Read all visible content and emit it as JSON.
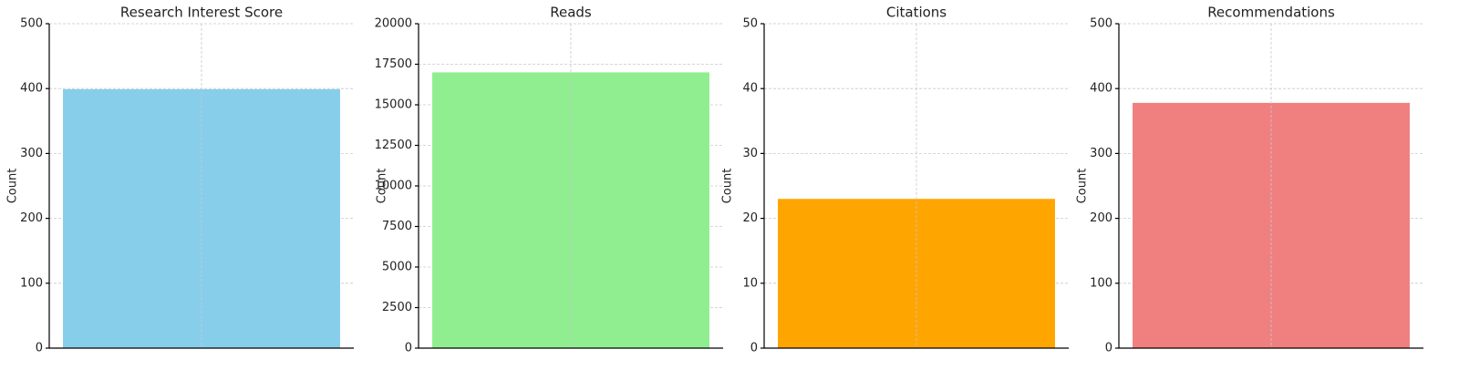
{
  "chart_data": [
    {
      "type": "bar",
      "title": "Research Interest Score",
      "y_label": "Count",
      "categories": [
        null
      ],
      "values": [
        399
      ],
      "color": "#87ceeb",
      "ylim": [
        0,
        500
      ],
      "yticks": [
        0,
        100,
        200,
        300,
        400,
        500
      ],
      "grid": true
    },
    {
      "type": "bar",
      "title": "Reads",
      "y_label": "Count",
      "categories": [
        null
      ],
      "values": [
        17000
      ],
      "color": "#90ee90",
      "ylim": [
        0,
        20000
      ],
      "yticks": [
        0,
        2500,
        5000,
        7500,
        10000,
        12500,
        15000,
        17500,
        20000
      ],
      "grid": true
    },
    {
      "type": "bar",
      "title": "Citations",
      "y_label": "Count",
      "categories": [
        null
      ],
      "values": [
        23
      ],
      "color": "#ffa500",
      "ylim": [
        0,
        50
      ],
      "yticks": [
        0,
        10,
        20,
        30,
        40,
        50
      ],
      "grid": true
    },
    {
      "type": "bar",
      "title": "Recommendations",
      "y_label": "Count",
      "categories": [
        null
      ],
      "values": [
        378
      ],
      "color": "#f08080",
      "ylim": [
        0,
        500
      ],
      "yticks": [
        0,
        100,
        200,
        300,
        400,
        500
      ],
      "grid": true
    }
  ]
}
